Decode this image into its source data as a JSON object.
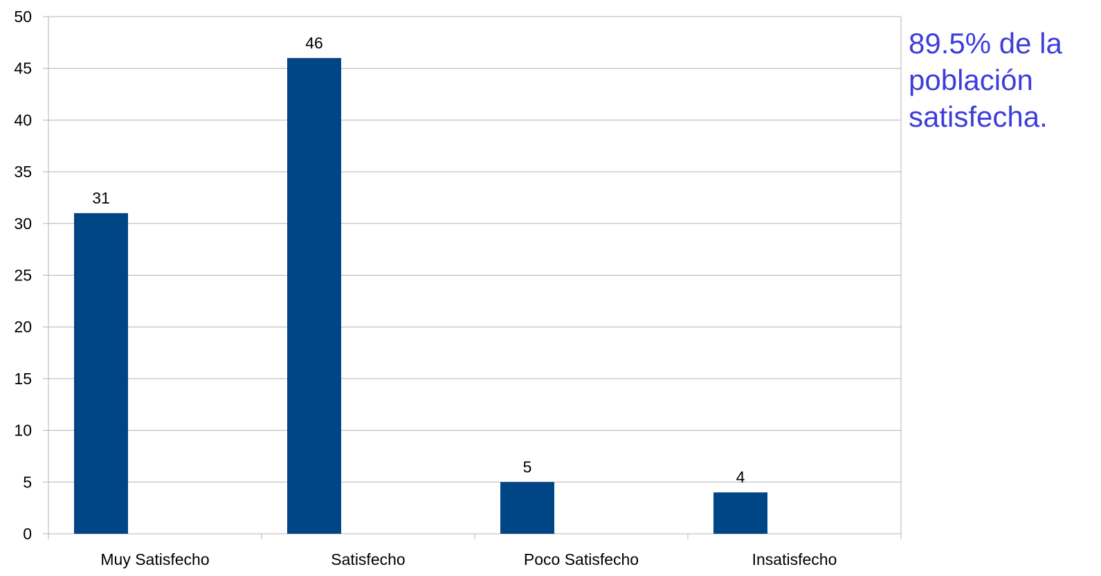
{
  "chart_data": {
    "type": "bar",
    "categories": [
      "Muy Satisfecho",
      "Satisfecho",
      "Poco Satisfecho",
      "Insatisfecho"
    ],
    "values": [
      31,
      46,
      5,
      4
    ],
    "data_labels": [
      "31",
      "46",
      "5",
      "4"
    ],
    "title": "",
    "xlabel": "",
    "ylabel": "",
    "ylim": [
      0,
      50
    ],
    "yticks": [
      "0",
      "5",
      "10",
      "15",
      "20",
      "25",
      "30",
      "35",
      "40",
      "45",
      "50"
    ],
    "grid": true,
    "legend": "none",
    "bar_color": "#004586"
  },
  "annotation": {
    "lines": [
      "89.5% de la",
      "población",
      "satisfecha."
    ],
    "color": "#3d3ddb"
  }
}
